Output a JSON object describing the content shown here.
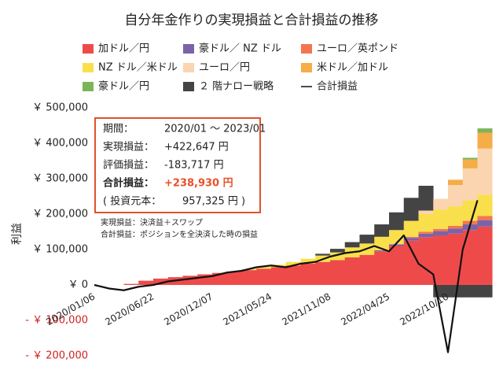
{
  "chart_data": {
    "type": "bar",
    "stacked": true,
    "title": "自分年金作りの実現損益と合計損益の推移",
    "ylabel": "利益",
    "categories": [
      "2020/01/06",
      null,
      null,
      null,
      "2020/06/22",
      null,
      null,
      null,
      "2020/12/07",
      null,
      null,
      null,
      "2021/05/24",
      null,
      null,
      null,
      "2021/11/08",
      null,
      null,
      null,
      "2022/04/25",
      null,
      null,
      null,
      "2022/10/10",
      null,
      null
    ],
    "ylim": [
      -200000,
      500000
    ],
    "yticks": [
      {
        "value": -200000,
        "label": "- ￥ 200,000"
      },
      {
        "value": -100000,
        "label": "- ￥ 100,000"
      },
      {
        "value": 0,
        "label": "￥ 0"
      },
      {
        "value": 100000,
        "label": "￥ 100,000"
      },
      {
        "value": 200000,
        "label": "￥ 200,000"
      },
      {
        "value": 300000,
        "label": "￥ 300,000"
      },
      {
        "value": 400000,
        "label": "￥ 400,000"
      },
      {
        "value": 500000,
        "label": "￥ 500,000"
      }
    ],
    "grid": false,
    "series": [
      {
        "name": "加ドル／円",
        "color": "#ef4a4a",
        "values": [
          0,
          0,
          3000,
          12000,
          18000,
          22000,
          26000,
          30000,
          34000,
          38000,
          42000,
          46000,
          50000,
          55000,
          60000,
          65000,
          70000,
          78000,
          85000,
          95000,
          110000,
          125000,
          135000,
          140000,
          145000,
          155000,
          165000
        ]
      },
      {
        "name": "豪ドル／ NZ ドル",
        "color": "#7b63a9",
        "values": [
          0,
          0,
          0,
          0,
          0,
          0,
          0,
          0,
          0,
          0,
          0,
          0,
          0,
          0,
          0,
          0,
          0,
          0,
          0,
          3000,
          5000,
          8000,
          10000,
          12000,
          14000,
          16000,
          18000
        ]
      },
      {
        "name": "ユーロ／英ポンド",
        "color": "#f4764f",
        "values": [
          0,
          0,
          0,
          0,
          0,
          0,
          0,
          0,
          0,
          0,
          0,
          0,
          0,
          0,
          0,
          0,
          0,
          0,
          0,
          0,
          0,
          3000,
          5000,
          6000,
          8000,
          10000,
          12000
        ]
      },
      {
        "name": "NZ ドル／米ドル",
        "color": "#f9df4b",
        "values": [
          0,
          0,
          0,
          0,
          0,
          0,
          0,
          0,
          0,
          0,
          3000,
          5000,
          7000,
          10000,
          14000,
          18000,
          22000,
          28000,
          32000,
          38000,
          40000,
          45000,
          50000,
          55000,
          55000,
          58000,
          60000
        ]
      },
      {
        "name": "ユーロ／円",
        "color": "#fbd4b0",
        "values": [
          0,
          0,
          0,
          0,
          0,
          0,
          0,
          0,
          0,
          0,
          0,
          0,
          0,
          0,
          0,
          0,
          0,
          0,
          0,
          0,
          0,
          0,
          10000,
          30000,
          60000,
          90000,
          130000
        ]
      },
      {
        "name": "米ドル／加ドル",
        "color": "#f5ad48",
        "values": [
          0,
          0,
          0,
          0,
          0,
          0,
          0,
          0,
          0,
          0,
          0,
          0,
          0,
          0,
          0,
          0,
          0,
          0,
          0,
          0,
          0,
          0,
          0,
          0,
          15000,
          25000,
          45000
        ]
      },
      {
        "name": "豪ドル／円",
        "color": "#7db45a",
        "values": [
          0,
          0,
          0,
          0,
          0,
          0,
          0,
          0,
          0,
          0,
          0,
          0,
          0,
          0,
          0,
          0,
          0,
          0,
          0,
          0,
          0,
          0,
          0,
          0,
          0,
          5000,
          12000
        ]
      },
      {
        "name": "２ 階ナロー戦略",
        "color": "#444444",
        "values": [
          0,
          0,
          0,
          0,
          0,
          0,
          0,
          0,
          0,
          0,
          0,
          0,
          0,
          0,
          0,
          5000,
          10000,
          15000,
          25000,
          35000,
          50000,
          65000,
          70000,
          -35000,
          -35000,
          -35000,
          -35000
        ]
      },
      {
        "name": "合計損益",
        "type": "line",
        "color": "#111111",
        "values": [
          0,
          -10000,
          -15000,
          -5000,
          0,
          10000,
          15000,
          20000,
          25000,
          35000,
          40000,
          50000,
          55000,
          50000,
          60000,
          65000,
          80000,
          90000,
          95000,
          110000,
          95000,
          140000,
          60000,
          30000,
          -190000,
          100000,
          238930
        ]
      }
    ],
    "info_box": [
      {
        "label": "期間：",
        "value": "2020/01 ～ 2023/01"
      },
      {
        "label": "実現損益：",
        "value": "+422,647 円"
      },
      {
        "label": "評価損益：",
        "value": "-183,717 円"
      },
      {
        "label": "合計損益：",
        "value": "+238,930 円"
      },
      {
        "label": "( 投資元本：",
        "value": "957,325 円 )"
      }
    ],
    "notes": [
      "実現損益：決済益＋スワップ",
      "合計損益：ポジションを全決済した時の損益"
    ]
  }
}
